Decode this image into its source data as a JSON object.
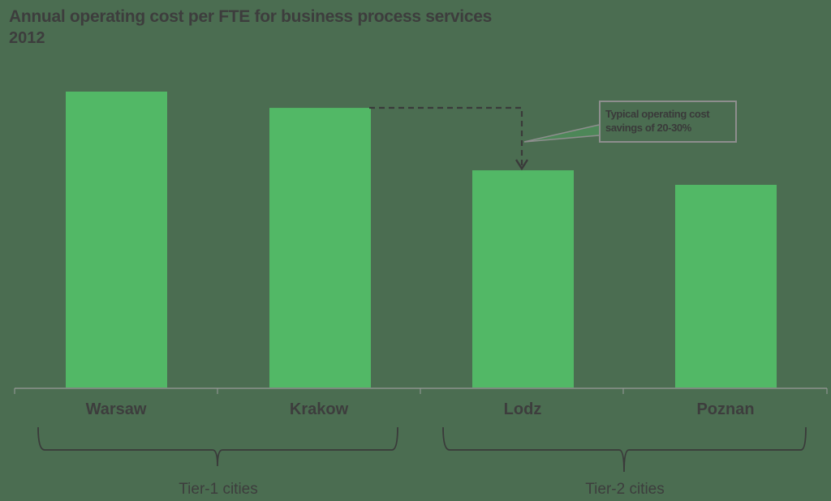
{
  "chart_data": {
    "type": "bar",
    "title": "Annual operating cost per FTE for business process services",
    "subtitle": "2012",
    "categories": [
      "Warsaw",
      "Krakow",
      "Lodz",
      "Poznan"
    ],
    "values": [
      100,
      94.5,
      73.4,
      68.5
    ],
    "value_note": "relative index (Warsaw = 100); no value axis shown",
    "xlabel": "",
    "ylabel": "",
    "grid": false,
    "legend": null,
    "groups": [
      {
        "label": "Tier-1 cities",
        "members": [
          "Warsaw",
          "Krakow"
        ]
      },
      {
        "label": "Tier-2 cities",
        "members": [
          "Lodz",
          "Poznan"
        ]
      }
    ],
    "annotations": [
      {
        "text": "Typical operating cost savings of 20-30%",
        "from": "Krakow",
        "to": "Lodz",
        "style": "dashed-arrow"
      }
    ],
    "colors": {
      "bar": "#52b866",
      "background": "#4b6d51",
      "text": "#3d3d3d"
    }
  },
  "header": {
    "title": "Annual operating cost per FTE for business process services",
    "subtitle": "2012"
  },
  "categories": {
    "warsaw": "Warsaw",
    "krakow": "Krakow",
    "lodz": "Lodz",
    "poznan": "Poznan"
  },
  "groups": {
    "tier1": "Tier-1 cities",
    "tier2": "Tier-2 cities"
  },
  "callout": {
    "line1": "Typical operating cost",
    "line2": "savings of 20-30%"
  }
}
